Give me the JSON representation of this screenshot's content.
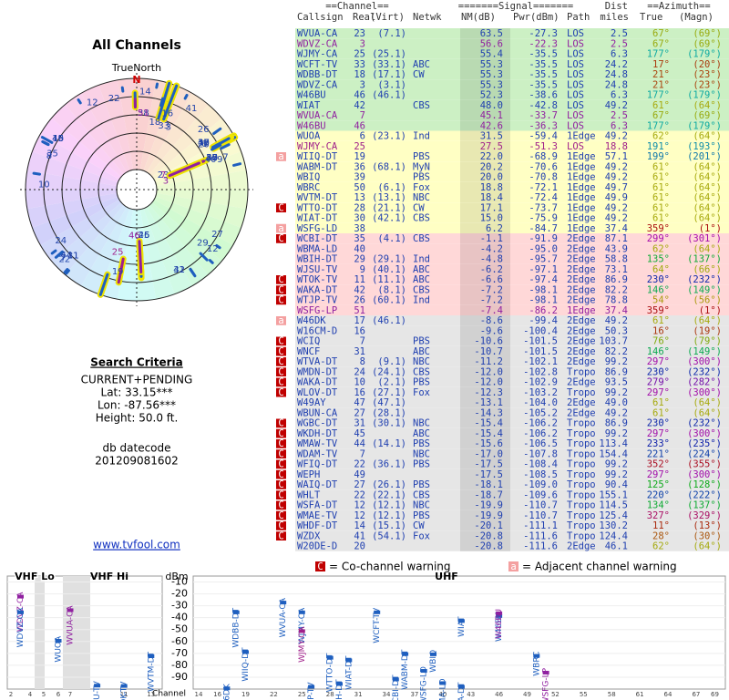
{
  "left_panel": {
    "title": "All Channels",
    "north_label": "TrueNorth",
    "north": "N",
    "criteria_title": "Search Criteria",
    "criteria": [
      "CURRENT+PENDING",
      "Lat: 33.15***",
      "Lon: -87.56***",
      "Height: 50.0 ft."
    ],
    "datecode_label": "db datecode",
    "datecode": "201209081602",
    "link": "www.tvfool.com"
  },
  "table": {
    "header": {
      "channel": "==Channel==",
      "signal": "=======Signal=======",
      "dist": "Dist",
      "azimuth": "==Azimuth==",
      "columns": [
        "Callsign",
        "Real",
        "(Virt)",
        "Netwk",
        "NM(dB)",
        "Pwr(dBm)",
        "Path",
        "miles",
        "True",
        "(Magn)"
      ]
    },
    "rows": [
      {
        "callsign": "WVUA-CA",
        "real": "23",
        "virt": "(7.1)",
        "nm": "63.5",
        "pwr": "-27.3",
        "path": "LOS",
        "dist": "2.5",
        "true": "67°",
        "magn": "(69°)",
        "color": "#ccf0c4"
      },
      {
        "callsign": "WDVZ-CA",
        "real": "3",
        "nm": "56.6",
        "pwr": "-22.3",
        "path": "LOS",
        "dist": "2.5",
        "true": "67°",
        "magn": "(69°)",
        "color": "#ccf0c4",
        "text_color": "#9020a0"
      },
      {
        "callsign": "WJMY-CA",
        "real": "25",
        "virt": "(25.1)",
        "nm": "55.4",
        "pwr": "-35.5",
        "path": "LOS",
        "dist": "6.3",
        "true": "177°",
        "magn": "(179°)",
        "color": "#ccf0c4"
      },
      {
        "callsign": "WCFT-TV",
        "real": "33",
        "virt": "(33.1)",
        "netwk": "ABC",
        "nm": "55.3",
        "pwr": "-35.5",
        "path": "LOS",
        "dist": "24.2",
        "true": "17°",
        "magn": "(20°)",
        "color": "#ccf0c4"
      },
      {
        "callsign": "WDBB-DT",
        "real": "18",
        "virt": "(17.1)",
        "netwk": "CW",
        "nm": "55.3",
        "pwr": "-35.5",
        "path": "LOS",
        "dist": "24.8",
        "true": "21°",
        "magn": "(23°)",
        "color": "#ccf0c4"
      },
      {
        "callsign": "WDVZ-CA",
        "real": "3",
        "virt": "(3.1)",
        "nm": "55.3",
        "pwr": "-35.5",
        "path": "LOS",
        "dist": "24.8",
        "true": "21°",
        "magn": "(23°)",
        "color": "#ccf0c4"
      },
      {
        "callsign": "W46BU",
        "real": "46",
        "virt": "(46.1)",
        "nm": "52.3",
        "pwr": "-38.6",
        "path": "LOS",
        "dist": "6.3",
        "true": "177°",
        "magn": "(179°)",
        "color": "#ccf0c4"
      },
      {
        "callsign": "WIAT",
        "real": "42",
        "netwk": "CBS",
        "nm": "48.0",
        "pwr": "-42.8",
        "path": "LOS",
        "dist": "49.2",
        "true": "61°",
        "magn": "(64°)",
        "color": "#ccf0c4"
      },
      {
        "callsign": "WVUA-CA",
        "real": "7",
        "nm": "45.1",
        "pwr": "-33.7",
        "path": "LOS",
        "dist": "2.5",
        "true": "67°",
        "magn": "(69°)",
        "color": "#ccf0c4",
        "text_color": "#9020a0"
      },
      {
        "callsign": "W46BU",
        "real": "46",
        "nm": "42.6",
        "pwr": "-36.3",
        "path": "LOS",
        "dist": "6.3",
        "true": "177°",
        "magn": "(179°)",
        "color": "#ccf0c4",
        "text_color": "#9020a0"
      },
      {
        "callsign": "WUOA",
        "real": "6",
        "virt": "(23.1)",
        "netwk": "Ind",
        "nm": "31.5",
        "pwr": "-59.4",
        "path": "1Edge",
        "dist": "49.2",
        "true": "62°",
        "magn": "(64°)",
        "color": "#ffffc4"
      },
      {
        "callsign": "WJMY-CA",
        "real": "25",
        "nm": "27.5",
        "pwr": "-51.3",
        "path": "LOS",
        "dist": "18.8",
        "true": "191°",
        "magn": "(193°)",
        "color": "#ffffc4",
        "text_color": "#a0208a"
      },
      {
        "callsign": "WIIQ-DT",
        "real": "19",
        "netwk": "PBS",
        "nm": "22.0",
        "pwr": "-68.9",
        "path": "1Edge",
        "dist": "57.1",
        "true": "199°",
        "magn": "(201°)",
        "color": "#ffffc4",
        "warning": "a"
      },
      {
        "callsign": "WABM-DT",
        "real": "36",
        "virt": "(68.1)",
        "netwk": "MyN",
        "nm": "20.2",
        "pwr": "-70.6",
        "path": "1Edge",
        "dist": "49.2",
        "true": "61°",
        "magn": "(64°)",
        "color": "#ffffc4"
      },
      {
        "callsign": "WBIQ",
        "real": "39",
        "netwk": "PBS",
        "nm": "20.0",
        "pwr": "-70.8",
        "path": "1Edge",
        "dist": "49.2",
        "true": "61°",
        "magn": "(64°)",
        "color": "#ffffc4"
      },
      {
        "callsign": "WBRC",
        "real": "50",
        "virt": "(6.1)",
        "netwk": "Fox",
        "nm": "18.8",
        "pwr": "-72.1",
        "path": "1Edge",
        "dist": "49.7",
        "true": "61°",
        "magn": "(64°)",
        "color": "#ffffc4"
      },
      {
        "callsign": "WVTM-DT",
        "real": "13",
        "virt": "(13.1)",
        "netwk": "NBC",
        "nm": "18.4",
        "pwr": "-72.4",
        "path": "1Edge",
        "dist": "49.9",
        "true": "61°",
        "magn": "(64°)",
        "color": "#ffffc4"
      },
      {
        "callsign": "WTTO-DT",
        "real": "28",
        "virt": "(21.1)",
        "netwk": "CW",
        "nm": "17.1",
        "pwr": "-73.7",
        "path": "1Edge",
        "dist": "49.2",
        "true": "61°",
        "magn": "(64°)",
        "color": "#ffffc4",
        "warning": "C"
      },
      {
        "callsign": "WIAT-DT",
        "real": "30",
        "virt": "(42.1)",
        "netwk": "CBS",
        "nm": "15.0",
        "pwr": "-75.9",
        "path": "1Edge",
        "dist": "49.2",
        "true": "61°",
        "magn": "(64°)",
        "color": "#ffffc4"
      },
      {
        "callsign": "WSFG-LD",
        "real": "38",
        "nm": "6.2",
        "pwr": "-84.7",
        "path": "1Edge",
        "dist": "37.4",
        "true": "359°",
        "magn": "(1°)",
        "color": "#ffffc4",
        "warning": "a"
      },
      {
        "callsign": "WCBI-DT",
        "real": "35",
        "virt": "(4.1)",
        "netwk": "CBS",
        "nm": "-1.1",
        "pwr": "-91.9",
        "path": "2Edge",
        "dist": "87.1",
        "true": "299°",
        "magn": "(301°)",
        "color": "#ffd8d8",
        "warning": "C"
      },
      {
        "callsign": "WBMA-LD",
        "real": "40",
        "nm": "-4.2",
        "pwr": "-95.0",
        "path": "2Edge",
        "dist": "43.9",
        "true": "62°",
        "magn": "(64°)",
        "color": "#ffd8d8"
      },
      {
        "callsign": "WBIH-DT",
        "real": "29",
        "virt": "(29.1)",
        "netwk": "Ind",
        "nm": "-4.8",
        "pwr": "-95.7",
        "path": "2Edge",
        "dist": "58.8",
        "true": "135°",
        "magn": "(137°)",
        "color": "#ffd8d8"
      },
      {
        "callsign": "WJSU-TV",
        "real": "9",
        "virt": "(40.1)",
        "netwk": "ABC",
        "nm": "-6.2",
        "pwr": "-97.1",
        "path": "2Edge",
        "dist": "73.1",
        "true": "64°",
        "magn": "(66°)",
        "color": "#ffd8d8"
      },
      {
        "callsign": "WTOK-TV",
        "real": "11",
        "virt": "(11.1)",
        "netwk": "ABC",
        "nm": "-6.6",
        "pwr": "-97.4",
        "path": "2Edge",
        "dist": "86.9",
        "true": "230°",
        "magn": "(232°)",
        "color": "#ffd8d8",
        "warning": "C"
      },
      {
        "callsign": "WAKA-DT",
        "real": "42",
        "virt": "(8.1)",
        "netwk": "CBS",
        "nm": "-7.2",
        "pwr": "-98.1",
        "path": "2Edge",
        "dist": "82.2",
        "true": "146°",
        "magn": "(149°)",
        "color": "#ffd8d8",
        "warning": "C"
      },
      {
        "callsign": "WTJP-TV",
        "real": "26",
        "virt": "(60.1)",
        "netwk": "Ind",
        "nm": "-7.2",
        "pwr": "-98.1",
        "path": "2Edge",
        "dist": "78.8",
        "true": "54°",
        "magn": "(56°)",
        "color": "#ffd8d8",
        "warning": "C"
      },
      {
        "callsign": "WSFG-LP",
        "real": "51",
        "nm": "-7.4",
        "pwr": "-86.2",
        "path": "1Edge",
        "dist": "37.4",
        "true": "359°",
        "magn": "(1°)",
        "color": "#ffd8d8",
        "text_color": "#9020a0"
      },
      {
        "callsign": "W46DK",
        "real": "17",
        "virt": "(46.1)",
        "nm": "-8.6",
        "pwr": "-99.4",
        "path": "2Edge",
        "dist": "49.2",
        "true": "61°",
        "magn": "(64°)",
        "color": "#e6e6e6",
        "warning": "a"
      },
      {
        "callsign": "W16CM-D",
        "real": "16",
        "nm": "-9.6",
        "pwr": "-100.4",
        "path": "2Edge",
        "dist": "50.3",
        "true": "16°",
        "magn": "(19°)",
        "color": "#e6e6e6"
      },
      {
        "callsign": "WCIQ",
        "real": "7",
        "netwk": "PBS",
        "nm": "-10.6",
        "pwr": "-101.5",
        "path": "2Edge",
        "dist": "103.7",
        "true": "76°",
        "magn": "(79°)",
        "color": "#e6e6e6",
        "warning": "C"
      },
      {
        "callsign": "WNCF",
        "real": "31",
        "netwk": "ABC",
        "nm": "-10.7",
        "pwr": "-101.5",
        "path": "2Edge",
        "dist": "82.2",
        "true": "146°",
        "magn": "(149°)",
        "color": "#e6e6e6",
        "warning": "C"
      },
      {
        "callsign": "WTVA-DT",
        "real": "8",
        "virt": "(9.1)",
        "netwk": "NBC",
        "nm": "-11.2",
        "pwr": "-102.1",
        "path": "2Edge",
        "dist": "99.2",
        "true": "297°",
        "magn": "(300°)",
        "color": "#e6e6e6",
        "warning": "C"
      },
      {
        "callsign": "WMDN-DT",
        "real": "24",
        "virt": "(24.1)",
        "netwk": "CBS",
        "nm": "-12.0",
        "pwr": "-102.8",
        "path": "Tropo",
        "dist": "86.9",
        "true": "230°",
        "magn": "(232°)",
        "color": "#e6e6e6",
        "warning": "C"
      },
      {
        "callsign": "WAKA-DT",
        "real": "10",
        "virt": "(2.1)",
        "netwk": "PBS",
        "nm": "-12.0",
        "pwr": "-102.9",
        "path": "2Edge",
        "dist": "93.5",
        "true": "279°",
        "magn": "(282°)",
        "color": "#e6e6e6",
        "warning": "C"
      },
      {
        "callsign": "WLOV-DT",
        "real": "16",
        "virt": "(27.1)",
        "netwk": "Fox",
        "nm": "-12.3",
        "pwr": "-103.2",
        "path": "Tropo",
        "dist": "99.2",
        "true": "297°",
        "magn": "(300°)",
        "color": "#e6e6e6",
        "warning": "C"
      },
      {
        "callsign": "W49AY",
        "real": "47",
        "virt": "(47.1)",
        "nm": "-13.1",
        "pwr": "-104.0",
        "path": "2Edge",
        "dist": "49.0",
        "true": "61°",
        "magn": "(64°)",
        "color": "#e6e6e6"
      },
      {
        "callsign": "WBUN-CA",
        "real": "27",
        "virt": "(28.1)",
        "nm": "-14.3",
        "pwr": "-105.2",
        "path": "2Edge",
        "dist": "49.2",
        "true": "61°",
        "magn": "(64°)",
        "color": "#e6e6e6"
      },
      {
        "callsign": "WGBC-DT",
        "real": "31",
        "virt": "(30.1)",
        "netwk": "NBC",
        "nm": "-15.4",
        "pwr": "-106.2",
        "path": "Tropo",
        "dist": "86.9",
        "true": "230°",
        "magn": "(232°)",
        "color": "#e6e6e6",
        "warning": "C"
      },
      {
        "callsign": "WKDH-DT",
        "real": "45",
        "netwk": "ABC",
        "nm": "-15.4",
        "pwr": "-106.2",
        "path": "Tropo",
        "dist": "99.2",
        "true": "297°",
        "magn": "(300°)",
        "color": "#e6e6e6",
        "warning": "C"
      },
      {
        "callsign": "WMAW-TV",
        "real": "44",
        "virt": "(14.1)",
        "netwk": "PBS",
        "nm": "-15.6",
        "pwr": "-106.5",
        "path": "Tropo",
        "dist": "113.4",
        "true": "233°",
        "magn": "(235°)",
        "color": "#e6e6e6",
        "warning": "C"
      },
      {
        "callsign": "WDAM-TV",
        "real": "7",
        "netwk": "NBC",
        "nm": "-17.0",
        "pwr": "-107.8",
        "path": "Tropo",
        "dist": "154.4",
        "true": "221°",
        "magn": "(224°)",
        "color": "#e6e6e6",
        "warning": "C"
      },
      {
        "callsign": "WFIQ-DT",
        "real": "22",
        "virt": "(36.1)",
        "netwk": "PBS",
        "nm": "-17.5",
        "pwr": "-108.4",
        "path": "Tropo",
        "dist": "99.2",
        "true": "352°",
        "magn": "(355°)",
        "color": "#e6e6e6",
        "warning": "C"
      },
      {
        "callsign": "WEPH",
        "real": "49",
        "nm": "-17.5",
        "pwr": "-108.5",
        "path": "Tropo",
        "dist": "99.2",
        "true": "297°",
        "magn": "(300°)",
        "color": "#e6e6e6",
        "warning": "C"
      },
      {
        "callsign": "WAIQ-DT",
        "real": "27",
        "virt": "(26.1)",
        "netwk": "PBS",
        "nm": "-18.1",
        "pwr": "-109.0",
        "path": "Tropo",
        "dist": "90.4",
        "true": "125°",
        "magn": "(128°)",
        "color": "#e6e6e6",
        "warning": "C"
      },
      {
        "callsign": "WHLT",
        "real": "22",
        "virt": "(22.1)",
        "netwk": "CBS",
        "nm": "-18.7",
        "pwr": "-109.6",
        "path": "Tropo",
        "dist": "155.1",
        "true": "220°",
        "magn": "(222°)",
        "color": "#e6e6e6",
        "warning": "C"
      },
      {
        "callsign": "WSFA-DT",
        "real": "12",
        "virt": "(12.1)",
        "netwk": "NBC",
        "nm": "-19.9",
        "pwr": "-110.7",
        "path": "Tropo",
        "dist": "114.5",
        "true": "134°",
        "magn": "(137°)",
        "color": "#e6e6e6",
        "warning": "C"
      },
      {
        "callsign": "WMAE-TV",
        "real": "12",
        "virt": "(12.1)",
        "netwk": "PBS",
        "nm": "-19.9",
        "pwr": "-110.7",
        "path": "Tropo",
        "dist": "125.4",
        "true": "327°",
        "magn": "(329°)",
        "color": "#e6e6e6",
        "warning": "C"
      },
      {
        "callsign": "WHDF-DT",
        "real": "14",
        "virt": "(15.1)",
        "netwk": "CW",
        "nm": "-20.1",
        "pwr": "-111.1",
        "path": "Tropo",
        "dist": "130.2",
        "true": "11°",
        "magn": "(13°)",
        "color": "#e6e6e6",
        "warning": "C"
      },
      {
        "callsign": "WZDX",
        "real": "41",
        "virt": "(54.1)",
        "netwk": "Fox",
        "nm": "-20.8",
        "pwr": "-111.6",
        "path": "Tropo",
        "dist": "124.4",
        "true": "28°",
        "magn": "(30°)",
        "color": "#e6e6e6",
        "warning": "C"
      },
      {
        "callsign": "W20DE-D",
        "real": "20",
        "nm": "-20.8",
        "pwr": "-111.6",
        "path": "2Edge",
        "dist": "46.1",
        "true": "62°",
        "magn": "(64°)",
        "color": "#e6e6e6"
      }
    ]
  },
  "legend": {
    "co_mark": "C",
    "co_channel": "= Co-channel warning",
    "adj_mark": "a",
    "adjacent": "= Adjacent channel warning"
  },
  "spectrum": {
    "vhf_lo": "VHF Lo",
    "vhf_hi": "VHF Hi",
    "uhf": "UHF",
    "y_label": "dBm",
    "x_label": "Channel",
    "ylim": [
      -100,
      -5
    ],
    "yticks": [
      -10,
      -20,
      -30,
      -40,
      -50,
      -60,
      -70,
      -80,
      -90
    ],
    "vhf_ticks": [
      2,
      4,
      5,
      6,
      7,
      11,
      13
    ],
    "uhf_ticks": [
      14,
      16,
      19,
      22,
      25,
      28,
      31,
      34,
      37,
      40,
      43,
      46,
      49,
      52,
      55,
      58,
      61,
      64,
      67,
      69
    ]
  }
}
